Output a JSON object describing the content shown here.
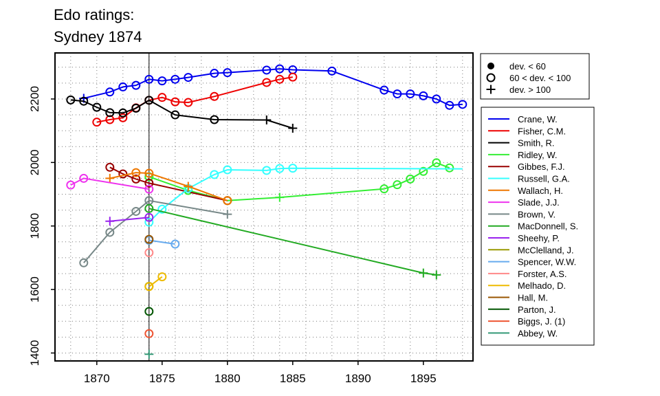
{
  "chart_data": {
    "type": "line",
    "title_lines": [
      "Edo ratings:",
      "Sydney 1874"
    ],
    "xlabel": "",
    "ylabel": "",
    "xlim": [
      1866.8,
      1898.8
    ],
    "ylim": [
      1375,
      2345
    ],
    "x_ticks": [
      1870,
      1875,
      1880,
      1885,
      1890,
      1895
    ],
    "y_ticks": [
      1400,
      1600,
      1800,
      2000,
      2200
    ],
    "grid": true,
    "reference_line_x": 1874,
    "marker_legend": [
      {
        "marker": "dot",
        "label": "dev. < 60"
      },
      {
        "marker": "circle",
        "label": "60 < dev. < 100"
      },
      {
        "marker": "plus",
        "label": "dev. > 100"
      }
    ],
    "series": [
      {
        "name": "Crane, W.",
        "color": "#0000EE",
        "points": [
          [
            1869,
            2202,
            "p"
          ],
          [
            1871,
            2222,
            "c"
          ],
          [
            1872,
            2238,
            "c"
          ],
          [
            1873,
            2243,
            "c"
          ],
          [
            1874,
            2262,
            "c"
          ],
          [
            1875,
            2257,
            "c"
          ],
          [
            1876,
            2262,
            "c"
          ],
          [
            1877,
            2268,
            "c"
          ],
          [
            1879,
            2281,
            "c"
          ],
          [
            1880,
            2283,
            "c"
          ],
          [
            1883,
            2291,
            "c"
          ],
          [
            1884,
            2295,
            "c"
          ],
          [
            1885,
            2292,
            "c"
          ],
          [
            1888,
            2288,
            "c"
          ],
          [
            1892,
            2228,
            "c"
          ],
          [
            1893,
            2216,
            "c"
          ],
          [
            1894,
            2216,
            "c"
          ],
          [
            1895,
            2210,
            "c"
          ],
          [
            1896,
            2200,
            "c"
          ],
          [
            1897,
            2180,
            "c"
          ],
          [
            1898,
            2183,
            "c"
          ]
        ]
      },
      {
        "name": "Fisher, C.M.",
        "color": "#EE0000",
        "points": [
          [
            1870,
            2127,
            "c"
          ],
          [
            1871,
            2135,
            "c"
          ],
          [
            1872,
            2141,
            "c"
          ],
          [
            1873,
            2172,
            "c"
          ],
          [
            1874,
            2196,
            "c"
          ],
          [
            1875,
            2205,
            "c"
          ],
          [
            1876,
            2191,
            "c"
          ],
          [
            1877,
            2189,
            "c"
          ],
          [
            1879,
            2208,
            "c"
          ],
          [
            1883,
            2252,
            "c"
          ],
          [
            1884,
            2262,
            "c"
          ],
          [
            1885,
            2269,
            "c"
          ]
        ]
      },
      {
        "name": "Smith, R.",
        "color": "#000000",
        "points": [
          [
            1868,
            2197,
            "c"
          ],
          [
            1869,
            2193,
            "c"
          ],
          [
            1870,
            2174,
            "c"
          ],
          [
            1871,
            2157,
            "c"
          ],
          [
            1872,
            2156,
            "c"
          ],
          [
            1873,
            2171,
            "c"
          ],
          [
            1874,
            2196,
            "c"
          ],
          [
            1876,
            2150,
            "c"
          ],
          [
            1879,
            2135,
            "c"
          ],
          [
            1883,
            2134,
            "p"
          ],
          [
            1885,
            2108,
            "p"
          ]
        ]
      },
      {
        "name": "Ridley, W.",
        "color": "#33EE33",
        "points": [
          [
            1874,
            1955,
            "c"
          ],
          [
            1877,
            1912,
            "c"
          ],
          [
            1880,
            1880,
            "c"
          ],
          [
            1884,
            1890,
            "p"
          ],
          [
            1892,
            1917,
            "c"
          ],
          [
            1893,
            1930,
            "c"
          ],
          [
            1894,
            1948,
            "c"
          ],
          [
            1895,
            1972,
            "c"
          ],
          [
            1896,
            1999,
            "c"
          ],
          [
            1897,
            1983,
            "c"
          ]
        ]
      },
      {
        "name": "Gibbes, F.J.",
        "color": "#990000",
        "points": [
          [
            1871,
            1985,
            "c"
          ],
          [
            1872,
            1964,
            "c"
          ],
          [
            1873,
            1948,
            "c"
          ],
          [
            1874,
            1935,
            "c"
          ],
          [
            1880,
            1880,
            "c"
          ]
        ]
      },
      {
        "name": "Russell, G.A.",
        "color": "#33FFFF",
        "points": [
          [
            1874,
            1812,
            "c"
          ],
          [
            1875,
            1853,
            "c"
          ],
          [
            1877,
            1918,
            "c"
          ],
          [
            1879,
            1962,
            "c"
          ],
          [
            1880,
            1977,
            "c"
          ],
          [
            1883,
            1975,
            "c"
          ],
          [
            1884,
            1981,
            "c"
          ],
          [
            1885,
            1982,
            "c"
          ],
          [
            1898,
            1980,
            "n"
          ]
        ]
      },
      {
        "name": "Wallach, H.",
        "color": "#EE7700",
        "points": [
          [
            1871,
            1950,
            "p"
          ],
          [
            1873,
            1968,
            "c"
          ],
          [
            1874,
            1966,
            "c"
          ],
          [
            1877,
            1925,
            "p"
          ],
          [
            1880,
            1880,
            "c"
          ]
        ]
      },
      {
        "name": "Slade, J.J.",
        "color": "#EE33EE",
        "points": [
          [
            1868,
            1929,
            "c"
          ],
          [
            1869,
            1950,
            "c"
          ],
          [
            1874,
            1916,
            "c"
          ]
        ]
      },
      {
        "name": "Brown, V.",
        "color": "#778888",
        "points": [
          [
            1869,
            1684,
            "c"
          ],
          [
            1871,
            1780,
            "c"
          ],
          [
            1873,
            1846,
            "c"
          ],
          [
            1874,
            1880,
            "c"
          ],
          [
            1880,
            1837,
            "p"
          ]
        ]
      },
      {
        "name": "MacDonnell, S.",
        "color": "#22AA22",
        "points": [
          [
            1874,
            1855,
            "c"
          ],
          [
            1895,
            1652,
            "p"
          ],
          [
            1896,
            1646,
            "p"
          ]
        ]
      },
      {
        "name": "Sheehy, P.",
        "color": "#9922EE",
        "points": [
          [
            1871,
            1815,
            "p"
          ],
          [
            1874,
            1827,
            "c"
          ]
        ]
      },
      {
        "name": "McClelland, J.",
        "color": "#999900",
        "points": [
          [
            1874,
            1610,
            "c"
          ]
        ]
      },
      {
        "name": "Spencer, W.W.",
        "color": "#66AAEE",
        "points": [
          [
            1874,
            1755,
            "c"
          ],
          [
            1876,
            1743,
            "c"
          ]
        ]
      },
      {
        "name": "Forster, A.S.",
        "color": "#FF8888",
        "points": [
          [
            1874,
            1716,
            "c"
          ]
        ]
      },
      {
        "name": "Melhado, D.",
        "color": "#EEBB00",
        "points": [
          [
            1874,
            1609,
            "c"
          ],
          [
            1875,
            1640,
            "c"
          ]
        ]
      },
      {
        "name": "Hall, M.",
        "color": "#995500",
        "points": [
          [
            1874,
            1758,
            "c"
          ]
        ]
      },
      {
        "name": "Parton, J.",
        "color": "#005500",
        "points": [
          [
            1874,
            1531,
            "c"
          ]
        ]
      },
      {
        "name": "Biggs, J. (1)",
        "color": "#EE5533",
        "points": [
          [
            1874,
            1461,
            "c"
          ]
        ]
      },
      {
        "name": "Abbey, W.",
        "color": "#339977",
        "points": [
          [
            1874,
            1396,
            "p"
          ]
        ]
      }
    ]
  }
}
